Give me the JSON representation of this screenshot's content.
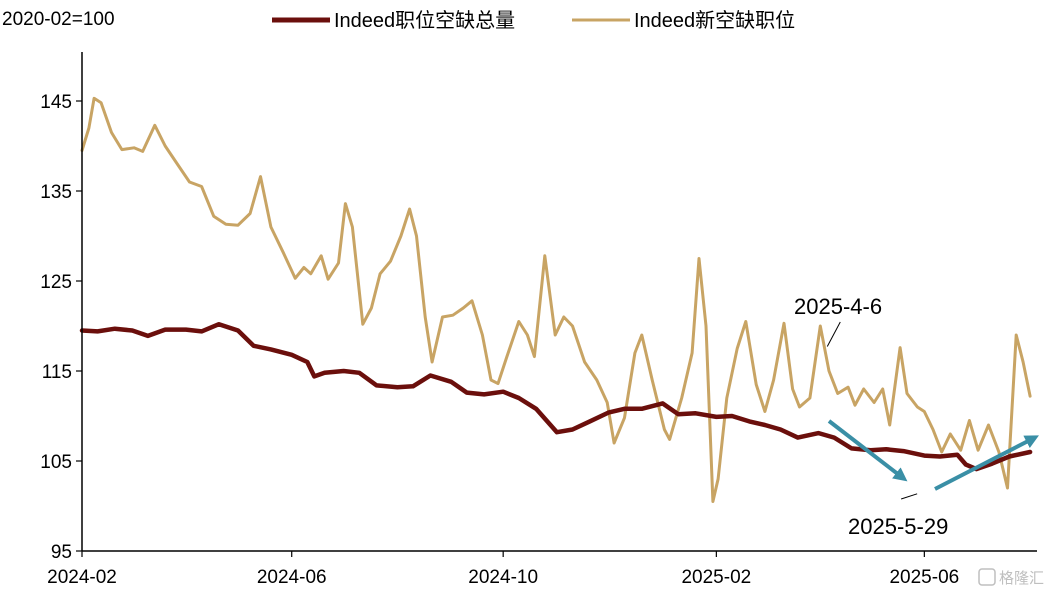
{
  "watermark": "格隆汇",
  "colors": {
    "total": "#6b0f0c",
    "new": "#c8a464",
    "arrow": "#3a8fa6",
    "axis": "#000000"
  },
  "chart_data": {
    "type": "line",
    "unit_label": "2020-02=100",
    "xlabel": "",
    "ylabel": "",
    "xlim": [
      "2024-02-01",
      "2025-08-05"
    ],
    "ylim": [
      95,
      150
    ],
    "yticks": [
      95,
      105,
      115,
      125,
      135,
      145
    ],
    "xticks": [
      "2024-02",
      "2024-06",
      "2024-10",
      "2025-02",
      "2025-06"
    ],
    "grid": false,
    "legend_position": "top",
    "series": [
      {
        "name": "Indeed职位空缺总量",
        "color_key": "total",
        "points": [
          [
            "2024-02-01",
            119.5
          ],
          [
            "2024-02-10",
            119.4
          ],
          [
            "2024-02-20",
            119.7
          ],
          [
            "2024-03-01",
            119.5
          ],
          [
            "2024-03-10",
            118.9
          ],
          [
            "2024-03-20",
            119.6
          ],
          [
            "2024-04-01",
            119.6
          ],
          [
            "2024-04-10",
            119.4
          ],
          [
            "2024-04-20",
            120.2
          ],
          [
            "2024-05-01",
            119.5
          ],
          [
            "2024-05-10",
            117.8
          ],
          [
            "2024-05-20",
            117.4
          ],
          [
            "2024-06-01",
            116.8
          ],
          [
            "2024-06-10",
            116.0
          ],
          [
            "2024-06-14",
            114.4
          ],
          [
            "2024-06-20",
            114.8
          ],
          [
            "2024-07-01",
            115.0
          ],
          [
            "2024-07-10",
            114.8
          ],
          [
            "2024-07-20",
            113.4
          ],
          [
            "2024-08-01",
            113.2
          ],
          [
            "2024-08-10",
            113.3
          ],
          [
            "2024-08-20",
            114.5
          ],
          [
            "2024-09-01",
            113.8
          ],
          [
            "2024-09-10",
            112.6
          ],
          [
            "2024-09-20",
            112.4
          ],
          [
            "2024-10-01",
            112.7
          ],
          [
            "2024-10-10",
            112.0
          ],
          [
            "2024-10-20",
            110.8
          ],
          [
            "2024-11-01",
            108.2
          ],
          [
            "2024-11-10",
            108.5
          ],
          [
            "2024-11-20",
            109.4
          ],
          [
            "2024-12-01",
            110.4
          ],
          [
            "2024-12-10",
            110.8
          ],
          [
            "2024-12-20",
            110.8
          ],
          [
            "2025-01-01",
            111.4
          ],
          [
            "2025-01-10",
            110.2
          ],
          [
            "2025-01-20",
            110.3
          ],
          [
            "2025-02-01",
            109.9
          ],
          [
            "2025-02-10",
            110.0
          ],
          [
            "2025-02-20",
            109.4
          ],
          [
            "2025-03-01",
            109.0
          ],
          [
            "2025-03-10",
            108.5
          ],
          [
            "2025-03-20",
            107.6
          ],
          [
            "2025-04-01",
            108.1
          ],
          [
            "2025-04-10",
            107.6
          ],
          [
            "2025-04-20",
            106.4
          ],
          [
            "2025-05-01",
            106.2
          ],
          [
            "2025-05-10",
            106.3
          ],
          [
            "2025-05-20",
            106.1
          ],
          [
            "2025-06-01",
            105.6
          ],
          [
            "2025-06-10",
            105.5
          ],
          [
            "2025-06-20",
            105.7
          ],
          [
            "2025-06-25",
            104.6
          ],
          [
            "2025-07-01",
            104.1
          ],
          [
            "2025-07-10",
            104.7
          ],
          [
            "2025-07-20",
            105.5
          ],
          [
            "2025-08-01",
            106.0
          ]
        ]
      },
      {
        "name": "Indeed新空缺职位",
        "color_key": "new",
        "points": [
          [
            "2024-02-01",
            139.5
          ],
          [
            "2024-02-05",
            142.0
          ],
          [
            "2024-02-08",
            145.3
          ],
          [
            "2024-02-12",
            144.8
          ],
          [
            "2024-02-18",
            141.5
          ],
          [
            "2024-02-24",
            139.6
          ],
          [
            "2024-03-02",
            139.8
          ],
          [
            "2024-03-07",
            139.4
          ],
          [
            "2024-03-14",
            142.3
          ],
          [
            "2024-03-20",
            140.0
          ],
          [
            "2024-03-27",
            138.0
          ],
          [
            "2024-04-03",
            136.0
          ],
          [
            "2024-04-10",
            135.5
          ],
          [
            "2024-04-17",
            132.2
          ],
          [
            "2024-04-24",
            131.3
          ],
          [
            "2024-05-01",
            131.2
          ],
          [
            "2024-05-08",
            132.5
          ],
          [
            "2024-05-14",
            136.6
          ],
          [
            "2024-05-20",
            131.0
          ],
          [
            "2024-05-27",
            128.2
          ],
          [
            "2024-06-03",
            125.3
          ],
          [
            "2024-06-08",
            126.5
          ],
          [
            "2024-06-12",
            125.8
          ],
          [
            "2024-06-18",
            127.8
          ],
          [
            "2024-06-22",
            125.2
          ],
          [
            "2024-06-28",
            127.0
          ],
          [
            "2024-07-02",
            133.6
          ],
          [
            "2024-07-06",
            131.0
          ],
          [
            "2024-07-12",
            120.2
          ],
          [
            "2024-07-17",
            122.0
          ],
          [
            "2024-07-22",
            125.8
          ],
          [
            "2024-07-28",
            127.2
          ],
          [
            "2024-08-03",
            130.0
          ],
          [
            "2024-08-08",
            133.0
          ],
          [
            "2024-08-12",
            130.0
          ],
          [
            "2024-08-17",
            121.0
          ],
          [
            "2024-08-21",
            116.0
          ],
          [
            "2024-08-27",
            121.0
          ],
          [
            "2024-09-02",
            121.2
          ],
          [
            "2024-09-08",
            122.0
          ],
          [
            "2024-09-13",
            122.8
          ],
          [
            "2024-09-19",
            119.0
          ],
          [
            "2024-09-24",
            114.0
          ],
          [
            "2024-09-28",
            113.6
          ],
          [
            "2024-10-03",
            116.5
          ],
          [
            "2024-10-10",
            120.5
          ],
          [
            "2024-10-15",
            119.0
          ],
          [
            "2024-10-19",
            116.6
          ],
          [
            "2024-10-25",
            127.8
          ],
          [
            "2024-10-31",
            119.0
          ],
          [
            "2024-11-05",
            121.0
          ],
          [
            "2024-11-10",
            120.0
          ],
          [
            "2024-11-17",
            116.0
          ],
          [
            "2024-11-24",
            114.0
          ],
          [
            "2024-11-30",
            111.5
          ],
          [
            "2024-12-04",
            107.0
          ],
          [
            "2024-12-10",
            109.8
          ],
          [
            "2024-12-16",
            117.0
          ],
          [
            "2024-12-20",
            119.0
          ],
          [
            "2024-12-26",
            114.0
          ],
          [
            "2025-01-02",
            108.5
          ],
          [
            "2025-01-05",
            107.4
          ],
          [
            "2025-01-12",
            112.0
          ],
          [
            "2025-01-18",
            117.0
          ],
          [
            "2025-01-22",
            127.5
          ],
          [
            "2025-01-26",
            120.0
          ],
          [
            "2025-01-30",
            100.5
          ],
          [
            "2025-02-02",
            103.0
          ],
          [
            "2025-02-07",
            112.0
          ],
          [
            "2025-02-13",
            117.5
          ],
          [
            "2025-02-18",
            120.5
          ],
          [
            "2025-02-24",
            113.5
          ],
          [
            "2025-03-01",
            110.5
          ],
          [
            "2025-03-06",
            114.0
          ],
          [
            "2025-03-12",
            120.3
          ],
          [
            "2025-03-17",
            113.0
          ],
          [
            "2025-03-21",
            111.0
          ],
          [
            "2025-03-27",
            112.0
          ],
          [
            "2025-04-02",
            120.0
          ],
          [
            "2025-04-07",
            115.0
          ],
          [
            "2025-04-12",
            112.5
          ],
          [
            "2025-04-18",
            113.2
          ],
          [
            "2025-04-22",
            111.2
          ],
          [
            "2025-04-27",
            113.0
          ],
          [
            "2025-05-03",
            111.5
          ],
          [
            "2025-05-08",
            113.0
          ],
          [
            "2025-05-12",
            109.0
          ],
          [
            "2025-05-18",
            117.6
          ],
          [
            "2025-05-22",
            112.5
          ],
          [
            "2025-05-28",
            111.0
          ],
          [
            "2025-06-01",
            110.5
          ],
          [
            "2025-06-06",
            108.5
          ],
          [
            "2025-06-11",
            106.0
          ],
          [
            "2025-06-16",
            108.0
          ],
          [
            "2025-06-22",
            106.2
          ],
          [
            "2025-06-27",
            109.5
          ],
          [
            "2025-07-02",
            106.2
          ],
          [
            "2025-07-08",
            109.0
          ],
          [
            "2025-07-14",
            106.0
          ],
          [
            "2025-07-19",
            102.0
          ],
          [
            "2025-07-24",
            119.0
          ],
          [
            "2025-07-28",
            116.0
          ],
          [
            "2025-08-01",
            112.2
          ]
        ]
      }
    ],
    "annotations": [
      {
        "text": "2025-4-6",
        "x": "2025-04-06",
        "y": 117.5
      },
      {
        "text": "2025-5-29",
        "x": "2025-05-29",
        "y": 101.8
      }
    ]
  }
}
